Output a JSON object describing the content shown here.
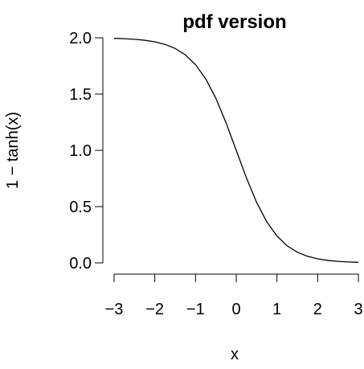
{
  "chart_data": {
    "type": "line",
    "title": "pdf version",
    "xlabel": "x",
    "ylabel": "1 − tanh(x)",
    "xlim": [
      -3,
      3
    ],
    "ylim": [
      0,
      2
    ],
    "x_ticks": [
      -3,
      -2,
      -1,
      0,
      1,
      2,
      3
    ],
    "x_tick_labels": [
      "−3",
      "−2",
      "−1",
      "0",
      "1",
      "2",
      "3"
    ],
    "y_ticks": [
      0.0,
      0.5,
      1.0,
      1.5,
      2.0
    ],
    "y_tick_labels": [
      "0.0",
      "0.5",
      "1.0",
      "1.5",
      "2.0"
    ],
    "grid": false,
    "series": [
      {
        "x": [
          -3.0,
          -2.75,
          -2.5,
          -2.25,
          -2.0,
          -1.75,
          -1.5,
          -1.25,
          -1.0,
          -0.75,
          -0.5,
          -0.25,
          0.0,
          0.25,
          0.5,
          0.75,
          1.0,
          1.25,
          1.5,
          1.75,
          2.0,
          2.25,
          2.5,
          2.75,
          3.0
        ],
        "values": [
          1.9951,
          1.9918,
          1.9866,
          1.978,
          1.964,
          1.9414,
          1.9051,
          1.8483,
          1.7616,
          1.6351,
          1.4621,
          1.2449,
          1.0,
          0.7551,
          0.5379,
          0.3649,
          0.2384,
          0.1517,
          0.0949,
          0.0586,
          0.036,
          0.022,
          0.0134,
          0.0082,
          0.0049
        ],
        "color": "#000000"
      }
    ]
  }
}
